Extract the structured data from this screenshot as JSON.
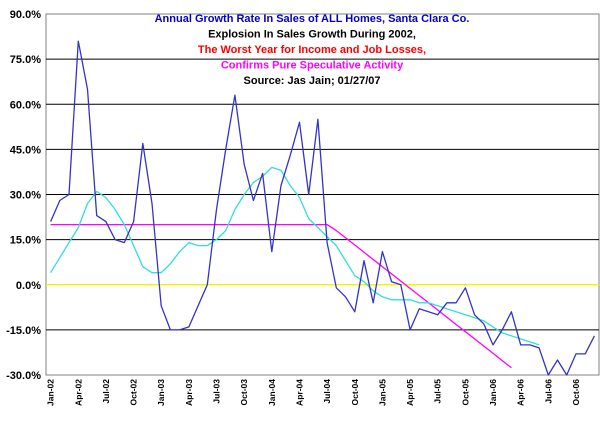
{
  "chart_data": {
    "type": "line",
    "title": "Annual Growth Rate In Sales of ALL Homes, Santa Clara Co.",
    "subtitle_lines": [
      {
        "text": "Annual Growth Rate In Sales of ALL Homes, Santa Clara Co.",
        "color": "#0000cc"
      },
      {
        "text": "Explosion In Sales Growth During 2002,",
        "color": "#000000"
      },
      {
        "text": "The Worst Year for Income and Job Losses,",
        "color": "#ff0000"
      },
      {
        "text": "Confirms Pure Speculative Activity",
        "color": "#ff00ff"
      },
      {
        "text": "Source: Jas Jain; 01/27/07",
        "color": "#000000"
      }
    ],
    "ylim": [
      -30,
      90
    ],
    "y_ticks": [
      -30,
      -15,
      0,
      15,
      30,
      45,
      60,
      75,
      90
    ],
    "y_tick_labels": [
      "-30.0%",
      "-15.0%",
      "0.0%",
      "15.0%",
      "30.0%",
      "45.0%",
      "60.0%",
      "75.0%",
      "90.0%"
    ],
    "grid": true,
    "x_tick_labels": [
      "Jan-02",
      "Apr-02",
      "Jul-02",
      "Oct-02",
      "Jan-03",
      "Apr-03",
      "Jul-03",
      "Oct-03",
      "Jan-04",
      "Apr-04",
      "Jul-04",
      "Oct-04",
      "Jan-05",
      "Apr-05",
      "Jul-05",
      "Oct-05",
      "Jan-06",
      "Apr-06",
      "Jul-06",
      "Oct-06"
    ],
    "series": [
      {
        "color": "#3333cc",
        "start_month": "Jan-02",
        "values": [
          21,
          28,
          30,
          81,
          65,
          23,
          21,
          15,
          14,
          21,
          47,
          27,
          -7,
          -15,
          -15,
          -14,
          -7,
          0,
          25,
          45,
          63,
          40,
          28,
          37,
          11,
          33,
          43,
          54,
          30,
          55,
          14,
          -1,
          -4,
          -9,
          8,
          -6,
          11,
          1,
          0,
          -15,
          -8,
          -9,
          -10,
          -6,
          -6,
          -1,
          -10,
          -13,
          -20,
          -15,
          -9,
          -20,
          -20,
          -21,
          -30,
          -25,
          -30,
          -23,
          -23,
          -17
        ]
      },
      {
        "color": "#33dddd",
        "start_month": "Jan-02",
        "values": [
          4,
          9,
          14,
          19,
          27,
          31,
          29,
          25,
          20,
          13,
          6,
          4,
          4,
          7,
          11,
          14,
          13,
          13,
          15,
          18,
          25,
          30,
          34,
          36,
          39,
          38,
          33,
          29,
          22,
          19,
          16,
          13,
          8,
          3,
          1,
          -2,
          -4,
          -5,
          -5,
          -5,
          -6,
          -6,
          -7,
          -8,
          -9,
          -10,
          -11,
          -12,
          -14,
          -16,
          -17,
          -18,
          -19,
          -20
        ]
      },
      {
        "color": "#ff00ff",
        "start_month": "Jan-02",
        "values": [
          20,
          20,
          20,
          20,
          20,
          20,
          20,
          20,
          20,
          20,
          20,
          20,
          20,
          20,
          20,
          20,
          20,
          20,
          20,
          20,
          20,
          20,
          20,
          20,
          20,
          20,
          20,
          20,
          20,
          20,
          20,
          18,
          15.6,
          13.2,
          10.8,
          8.4,
          6,
          3.6,
          1.2,
          -1.2,
          -3.6,
          -6,
          -8.4,
          -10.8,
          -13.2,
          -15.6,
          -18,
          -20.4,
          -22.8,
          -25.2,
          -27.6
        ]
      },
      {
        "color": "#ffff00",
        "start_month": "Jan-02",
        "values": [
          0,
          0
        ]
      }
    ]
  }
}
